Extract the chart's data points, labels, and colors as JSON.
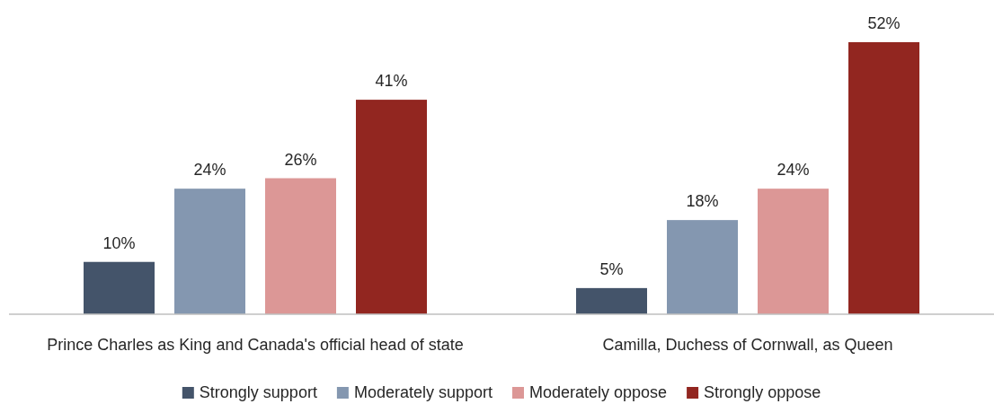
{
  "chart_data": {
    "type": "bar",
    "categories": [
      "Prince Charles as King and Canada's official head of state",
      "Camilla, Duchess of Cornwall, as Queen"
    ],
    "series": [
      {
        "name": "Strongly support",
        "color": "#44546a",
        "values": [
          10,
          5
        ],
        "value_labels": [
          "10%",
          "5%"
        ]
      },
      {
        "name": "Moderately support",
        "color": "#8497b0",
        "values": [
          24,
          18
        ],
        "value_labels": [
          "24%",
          "18%"
        ]
      },
      {
        "name": "Moderately oppose",
        "color": "#dc9796",
        "values": [
          26,
          24
        ],
        "value_labels": [
          "26%",
          "24%"
        ]
      },
      {
        "name": "Strongly oppose",
        "color": "#922620",
        "values": [
          41,
          52
        ],
        "value_labels": [
          "41%",
          "52%"
        ]
      }
    ],
    "legend": "bottom"
  }
}
